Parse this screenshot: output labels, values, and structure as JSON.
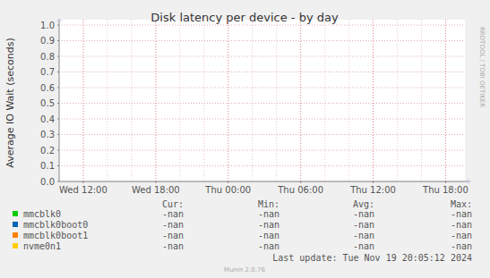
{
  "chart_data": {
    "type": "line",
    "title": "Disk latency per device - by day",
    "y_label": "Average IO Wait (seconds)",
    "x": [],
    "xlim": [
      10,
      43.6
    ],
    "xticks": [
      {
        "value": 12,
        "label": "Wed 12:00"
      },
      {
        "value": 18,
        "label": "Wed 18:00"
      },
      {
        "value": 24,
        "label": "Thu 00:00"
      },
      {
        "value": 30,
        "label": "Thu 06:00"
      },
      {
        "value": 36,
        "label": "Thu 12:00"
      },
      {
        "value": 42,
        "label": "Thu 18:00"
      }
    ],
    "ylim": [
      0,
      1
    ],
    "yticks": [
      {
        "value": 0,
        "label": "0.0"
      },
      0.1,
      0.2,
      0.3,
      0.4,
      0.5,
      0.6,
      0.7,
      0.8,
      0.9,
      {
        "value": 1,
        "label": "1.0"
      }
    ],
    "grid": true,
    "stats_headers": [
      "Cur:",
      "Min:",
      "Avg:",
      "Max:"
    ],
    "series": [
      {
        "name": "mmcblk0",
        "color": "#00cc00",
        "values": [],
        "stats": [
          "-nan",
          "-nan",
          "-nan",
          "-nan"
        ]
      },
      {
        "name": "mmcblk0boot0",
        "color": "#0066b3",
        "values": [],
        "stats": [
          "-nan",
          "-nan",
          "-nan",
          "-nan"
        ]
      },
      {
        "name": "mmcblk0boot1",
        "color": "#ff8000",
        "values": [],
        "stats": [
          "-nan",
          "-nan",
          "-nan",
          "-nan"
        ]
      },
      {
        "name": "nvme0n1",
        "color": "#ffcc00",
        "values": [],
        "stats": [
          "-nan",
          "-nan",
          "-nan",
          "-nan"
        ]
      }
    ],
    "last_update": "Last update: Tue Nov 19 20:05:12 2024",
    "footer": "Munin 2.0.76",
    "watermark": "RRDTOOL / TOBI OETIKER"
  }
}
